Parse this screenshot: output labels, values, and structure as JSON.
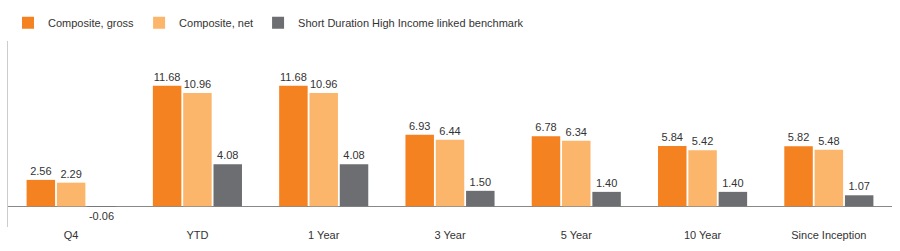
{
  "chart_data": {
    "type": "bar",
    "categories": [
      "Q4",
      "YTD",
      "1 Year",
      "3 Year",
      "5 Year",
      "10 Year",
      "Since Inception"
    ],
    "series": [
      {
        "name": "Composite, gross",
        "color": "#f58220",
        "values": [
          2.56,
          11.68,
          11.68,
          6.93,
          6.78,
          5.84,
          5.82
        ],
        "value_labels": [
          "2.56",
          "11.68",
          "11.68",
          "6.93",
          "6.78",
          "5.84",
          "5.82"
        ]
      },
      {
        "name": "Composite, net",
        "color": "#fbb66b",
        "values": [
          2.29,
          10.96,
          10.96,
          6.44,
          6.34,
          5.42,
          5.48
        ],
        "value_labels": [
          "2.29",
          "10.96",
          "10.96",
          "6.44",
          "6.34",
          "5.42",
          "5.48"
        ]
      },
      {
        "name": "Short Duration High Income linked benchmark",
        "color": "#6d6e71",
        "values": [
          -0.06,
          4.08,
          4.08,
          1.5,
          1.4,
          1.4,
          1.07
        ],
        "value_labels": [
          "-0.06",
          "4.08",
          "4.08",
          "1.50",
          "1.40",
          "1.40",
          "1.07"
        ]
      }
    ],
    "ylim": [
      -2,
      16
    ],
    "data_labels": true,
    "tick_labels": "x",
    "legend": "top-left",
    "grid": false
  }
}
